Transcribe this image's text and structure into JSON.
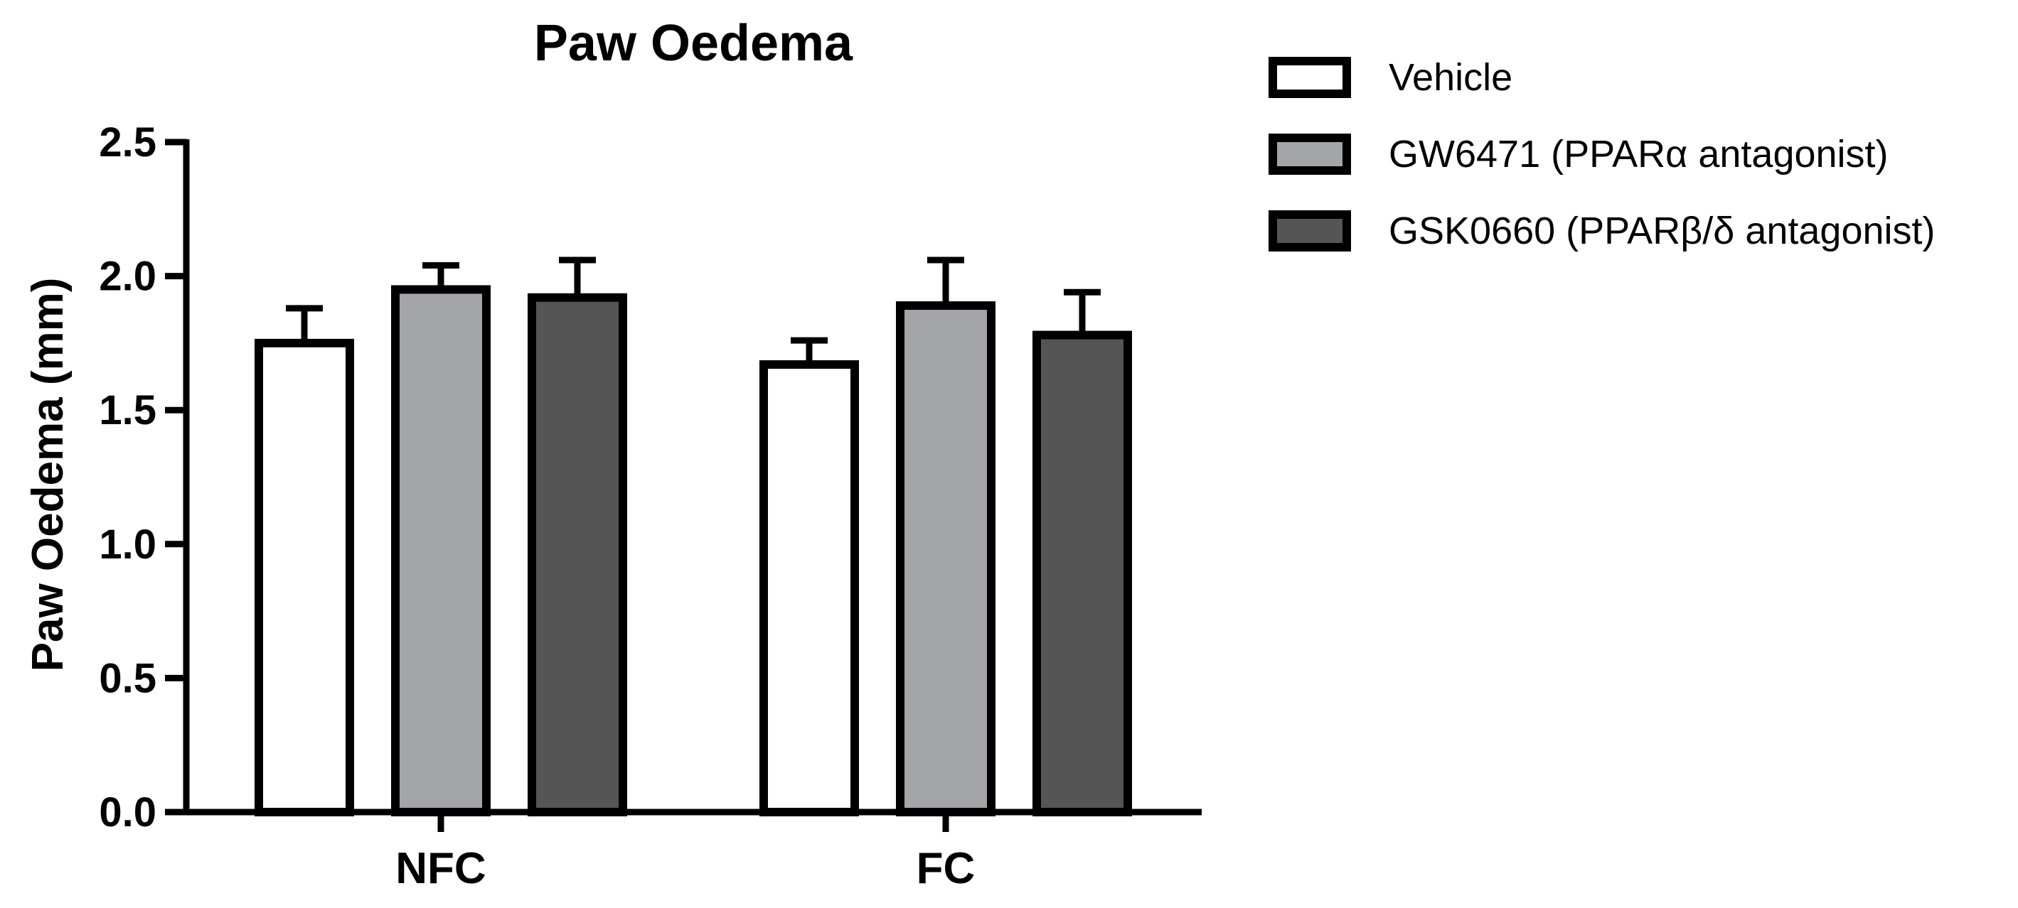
{
  "chart_data": {
    "type": "bar",
    "title": "Paw Oedema",
    "xlabel": "",
    "ylabel": "Paw Oedema (mm)",
    "ylim": [
      0,
      2.5
    ],
    "yticks": [
      0.0,
      0.5,
      1.0,
      1.5,
      2.0,
      2.5
    ],
    "ytick_labels": [
      "0.0",
      "0.5",
      "1.0",
      "1.5",
      "2.0",
      "2.5"
    ],
    "categories": [
      "NFC",
      "FC"
    ],
    "series": [
      {
        "name": "Vehicle",
        "values": [
          1.75,
          1.67
        ],
        "errors": [
          0.13,
          0.09
        ],
        "color": "#ffffff"
      },
      {
        "name": "GW6471 (PPARα antagonist)",
        "values": [
          1.95,
          1.89
        ],
        "errors": [
          0.09,
          0.17
        ],
        "color": "#a4a5a8"
      },
      {
        "name": "GSK0660 (PPARβ/δ antagonist)",
        "values": [
          1.92,
          1.78
        ],
        "errors": [
          0.14,
          0.16
        ],
        "color": "#555555"
      }
    ],
    "grid": false,
    "legend_position": "top-right",
    "error_bars": "upper"
  }
}
